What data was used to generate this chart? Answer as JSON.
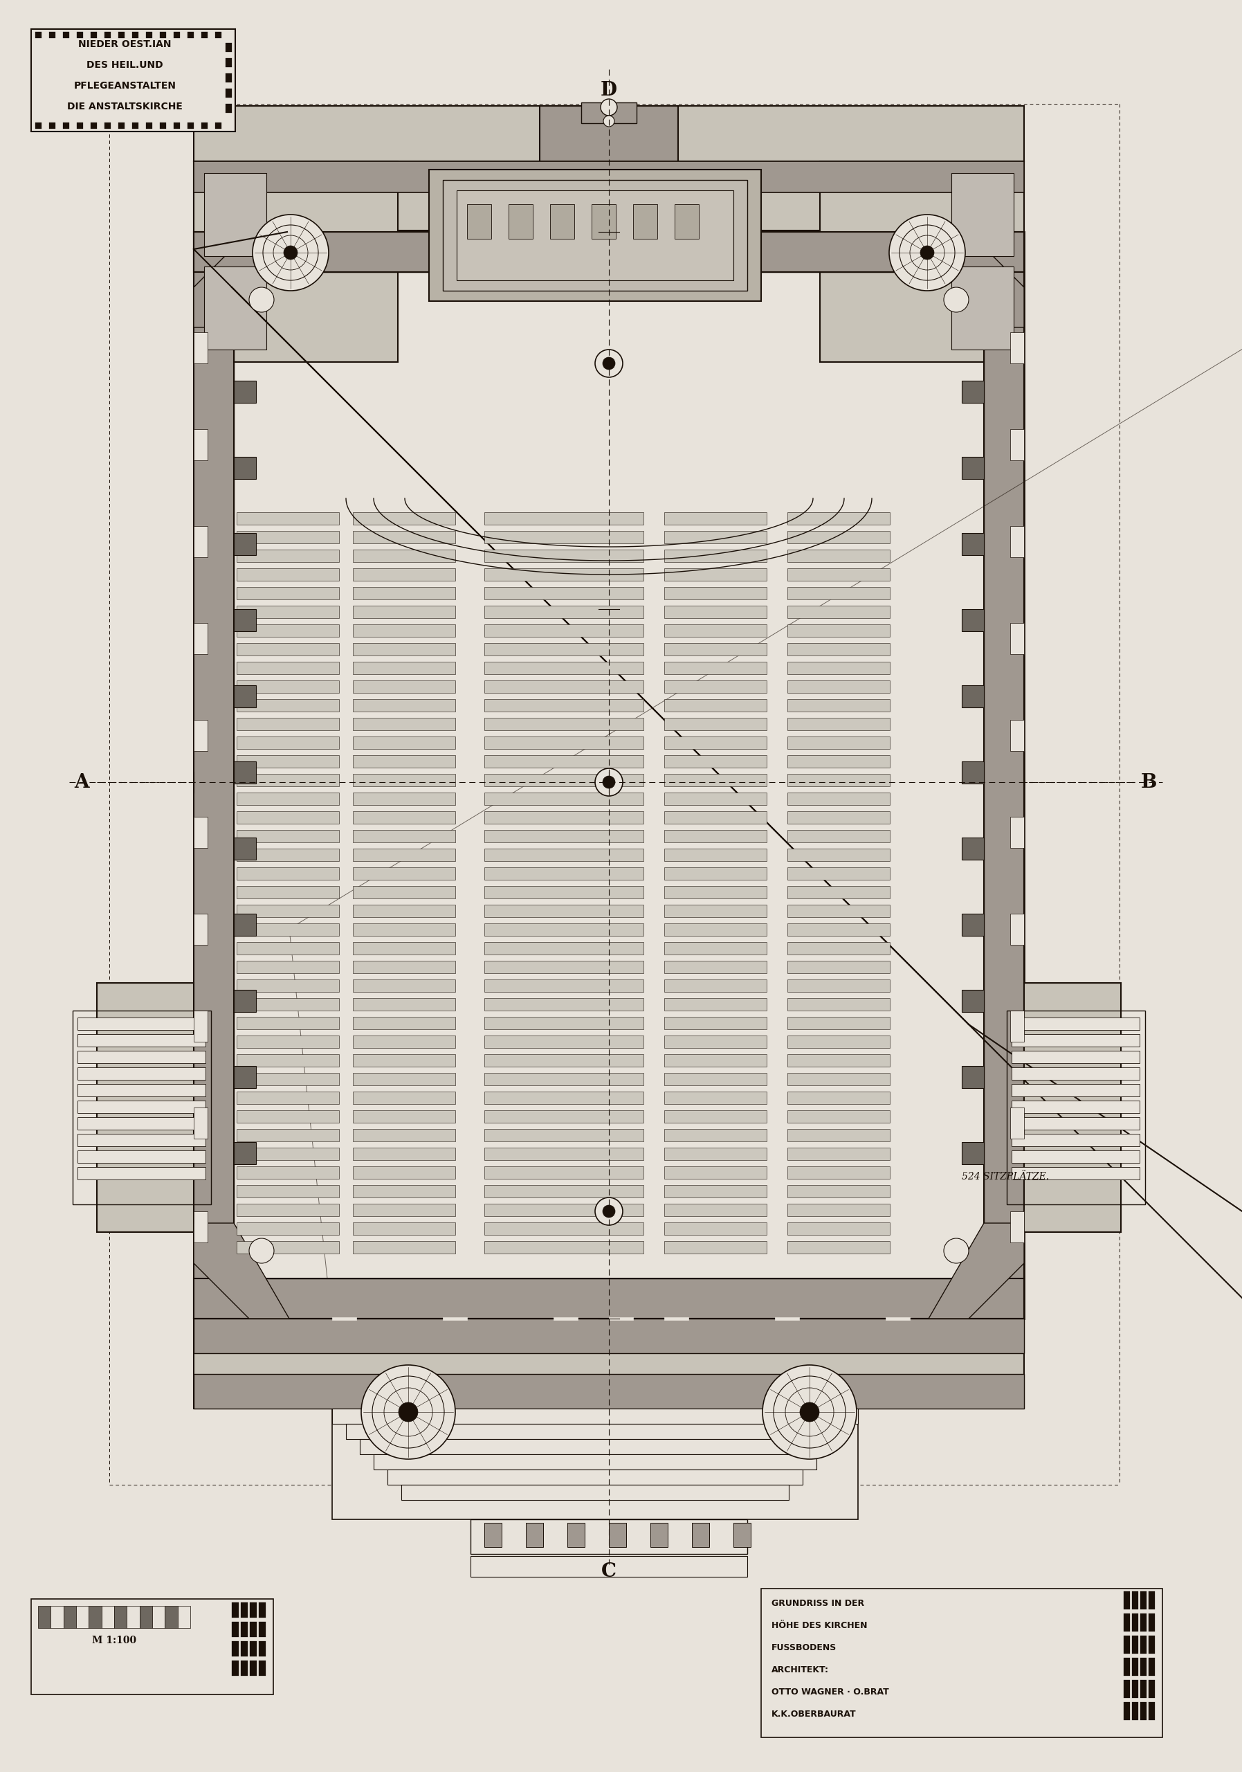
{
  "background_color": "#e8e3db",
  "fill_light": "#c8c3b8",
  "fill_medium": "#a09890",
  "fill_dark": "#6e6860",
  "line_color": "#1a1008",
  "title_top_left": "NIEDER OEST.IAN\nDES HEIL.UND\nPFLEGEANSTALTEN\nDIE ANSTALTSKIRCHE",
  "label_top": "D",
  "label_bottom": "C",
  "label_left": "A",
  "label_right": "B",
  "text_seats": "524 SITZPLÄTZE.",
  "bottom_left_text": "M 1:100",
  "bottom_right_text": "GRUNDRISS IN DER\nHÖHE DES KIRCHEN\nFUSSBODENS\nARCHITEKT:\nOTTO WAGNER · O.BRAT\nK.K.OBERBAURAT"
}
